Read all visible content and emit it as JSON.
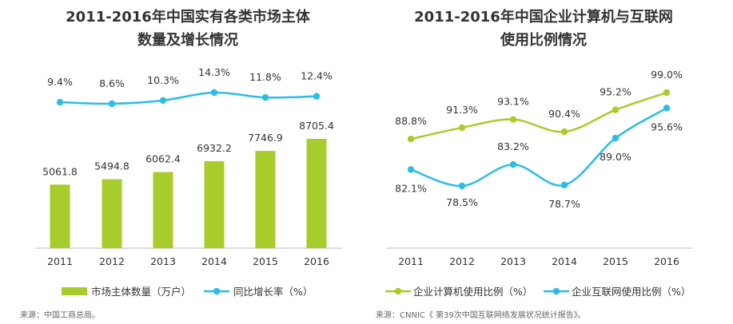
{
  "colors": {
    "green": "#a8cc2b",
    "blue": "#2bbde6",
    "axis": "#bdbdbd"
  },
  "chart_data": [
    {
      "type": "bar",
      "title_line1": "2011-2016年中国实有各类市场主体",
      "title_line2": "数量及增长情况",
      "categories": [
        "2011",
        "2012",
        "2013",
        "2014",
        "2015",
        "2016"
      ],
      "series": [
        {
          "name": "市场主体数量（万户）",
          "type": "bar",
          "color": "#a8cc2b",
          "values": [
            5061.8,
            5494.8,
            6062.4,
            6932.2,
            7746.9,
            8705.4
          ],
          "labels": [
            "5061.8",
            "5494.8",
            "6062.4",
            "6932.2",
            "7746.9",
            "8705.4"
          ]
        },
        {
          "name": "同比增长率（%）",
          "type": "line",
          "color": "#2bbde6",
          "values": [
            9.4,
            8.6,
            10.3,
            14.3,
            11.8,
            12.4
          ],
          "labels": [
            "9.4%",
            "8.6%",
            "10.3%",
            "14.3%",
            "11.8%",
            "12.4%"
          ]
        }
      ],
      "legend_position": "bottom",
      "source": "来源：中国工商总局。"
    },
    {
      "type": "line",
      "title_line1": "2011-2016年中国企业计算机与互联网",
      "title_line2": "使用比例情况",
      "categories": [
        "2011",
        "2012",
        "2013",
        "2014",
        "2015",
        "2016"
      ],
      "series": [
        {
          "name": "企业计算机使用比例（%）",
          "color": "#a8cc2b",
          "values": [
            88.8,
            91.3,
            93.1,
            90.4,
            95.2,
            99.0
          ],
          "labels": [
            "88.8%",
            "91.3%",
            "93.1%",
            "90.4%",
            "95.2%",
            "99.0%"
          ]
        },
        {
          "name": "企业互联网使用比例（%）",
          "color": "#2bbde6",
          "values": [
            82.1,
            78.5,
            83.2,
            78.7,
            89.0,
            95.6
          ],
          "labels": [
            "82.1%",
            "78.5%",
            "83.2%",
            "78.7%",
            "89.0%",
            "95.6%"
          ]
        }
      ],
      "legend_position": "bottom",
      "source": "来源：CNNIC《 第39次中国互联网络发展状况统计报告》。"
    }
  ]
}
